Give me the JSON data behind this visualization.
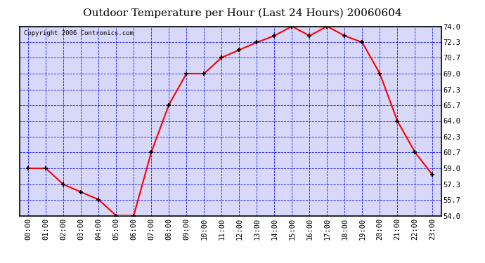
{
  "title": "Outdoor Temperature per Hour (Last 24 Hours) 20060604",
  "copyright_text": "Copyright 2006 Contronics.com",
  "hours": [
    "00:00",
    "01:00",
    "02:00",
    "03:00",
    "04:00",
    "05:00",
    "06:00",
    "07:00",
    "08:00",
    "09:00",
    "10:00",
    "11:00",
    "12:00",
    "13:00",
    "14:00",
    "15:00",
    "16:00",
    "17:00",
    "18:00",
    "19:00",
    "20:00",
    "21:00",
    "22:00",
    "23:00"
  ],
  "temperatures": [
    59.0,
    59.0,
    57.3,
    56.5,
    55.7,
    54.0,
    54.0,
    60.7,
    65.7,
    69.0,
    69.0,
    70.7,
    71.5,
    72.3,
    73.0,
    74.0,
    73.0,
    74.0,
    73.0,
    72.3,
    69.0,
    64.0,
    60.7,
    58.3
  ],
  "ylim": [
    54.0,
    74.0
  ],
  "yticks": [
    54.0,
    55.7,
    57.3,
    59.0,
    60.7,
    62.3,
    64.0,
    65.7,
    67.3,
    69.0,
    70.7,
    72.3,
    74.0
  ],
  "line_color": "red",
  "marker_color": "black",
  "grid_color": "blue",
  "bg_color": "#d8d8f8",
  "title_color": "black",
  "border_color": "black",
  "title_fontsize": 11,
  "tick_fontsize": 7.5,
  "copyright_fontsize": 6.5
}
